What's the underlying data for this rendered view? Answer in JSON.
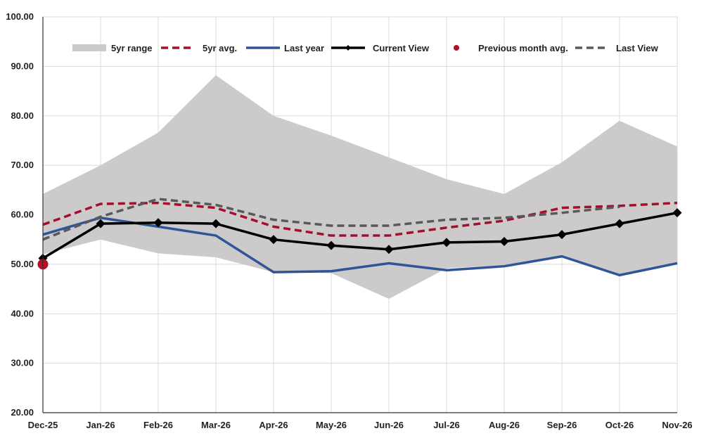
{
  "chart_data": {
    "type": "line",
    "title": "",
    "xlabel": "",
    "ylabel": "",
    "ylim": [
      20,
      100
    ],
    "yticks": [
      "20.00",
      "30.00",
      "40.00",
      "50.00",
      "60.00",
      "70.00",
      "80.00",
      "90.00",
      "100.00"
    ],
    "categories": [
      "Dec-25",
      "Jan-26",
      "Feb-26",
      "Mar-26",
      "Apr-26",
      "May-26",
      "Jun-26",
      "Jul-26",
      "Aug-26",
      "Sep-26",
      "Oct-26",
      "Nov-26"
    ],
    "grid": true,
    "legend_position": "top",
    "range": {
      "name": "5yr range",
      "color": "#cccacb",
      "low": [
        52.0,
        55.0,
        52.2,
        51.4,
        48.4,
        48.2,
        43.0,
        49.2,
        49.8,
        51.8,
        47.8,
        50.2
      ],
      "high": [
        64.2,
        70.0,
        76.6,
        88.2,
        80.0,
        76.0,
        71.6,
        67.2,
        64.2,
        70.6,
        79.0,
        73.8
      ]
    },
    "series": [
      {
        "name": "5yr avg.",
        "color": "#a50f2d",
        "dash": true,
        "marker": false,
        "values": [
          58.0,
          62.2,
          62.4,
          61.4,
          57.6,
          55.8,
          55.8,
          57.4,
          58.8,
          61.4,
          61.8,
          62.4
        ]
      },
      {
        "name": "Last year",
        "color": "#2f5597",
        "dash": false,
        "marker": false,
        "values": [
          56.0,
          59.4,
          57.6,
          55.8,
          48.4,
          48.6,
          50.2,
          48.8,
          49.6,
          51.6,
          47.8,
          50.2
        ]
      },
      {
        "name": "Current View",
        "color": "#000000",
        "dash": false,
        "marker": true,
        "values": [
          51.2,
          58.2,
          58.4,
          58.2,
          55.0,
          53.8,
          53.0,
          54.4,
          54.6,
          56.0,
          58.2,
          60.4
        ]
      },
      {
        "name": "Last View",
        "color": "#595959",
        "dash": true,
        "marker": false,
        "values": [
          55.0,
          59.6,
          63.2,
          62.0,
          59.0,
          57.8,
          57.8,
          59.0,
          59.4,
          60.4,
          61.6,
          null
        ]
      }
    ],
    "points": [
      {
        "name": "Previous month avg.",
        "color": "#b01028",
        "category": "Dec-25",
        "value": 50.0
      }
    ]
  }
}
